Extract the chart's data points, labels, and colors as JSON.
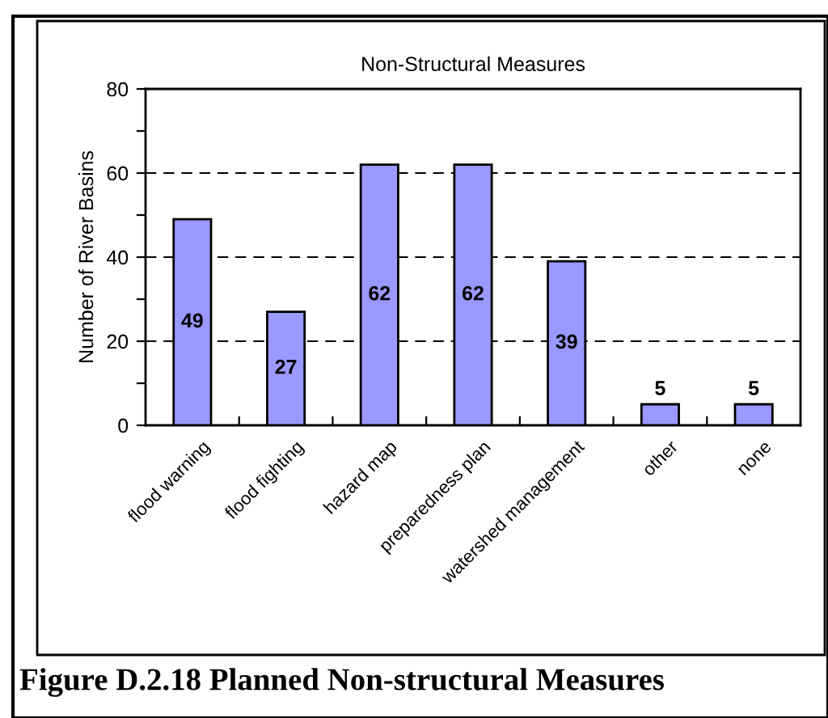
{
  "chart_data": {
    "type": "bar",
    "title": "Non-Structural Measures",
    "ylabel": "Number of River Basins",
    "categories": [
      "flood warning",
      "flood fighting",
      "hazard map",
      "preparedness plan",
      "watershed management",
      "other",
      "none"
    ],
    "values": [
      49,
      27,
      62,
      62,
      39,
      5,
      5
    ],
    "color": "#9999ff",
    "ylim": [
      0,
      80
    ],
    "yticks": [
      0,
      {
        "value": 10,
        "label": null
      },
      20,
      {
        "value": 30,
        "label": null
      },
      40,
      {
        "value": 50,
        "label": null
      },
      60,
      {
        "value": 70,
        "label": null
      },
      80
    ],
    "grid": "y",
    "line_style": "dashed",
    "data_labels": true,
    "annotations": [
      "Figure D.2.18 Planned Non-structural Measures"
    ]
  }
}
